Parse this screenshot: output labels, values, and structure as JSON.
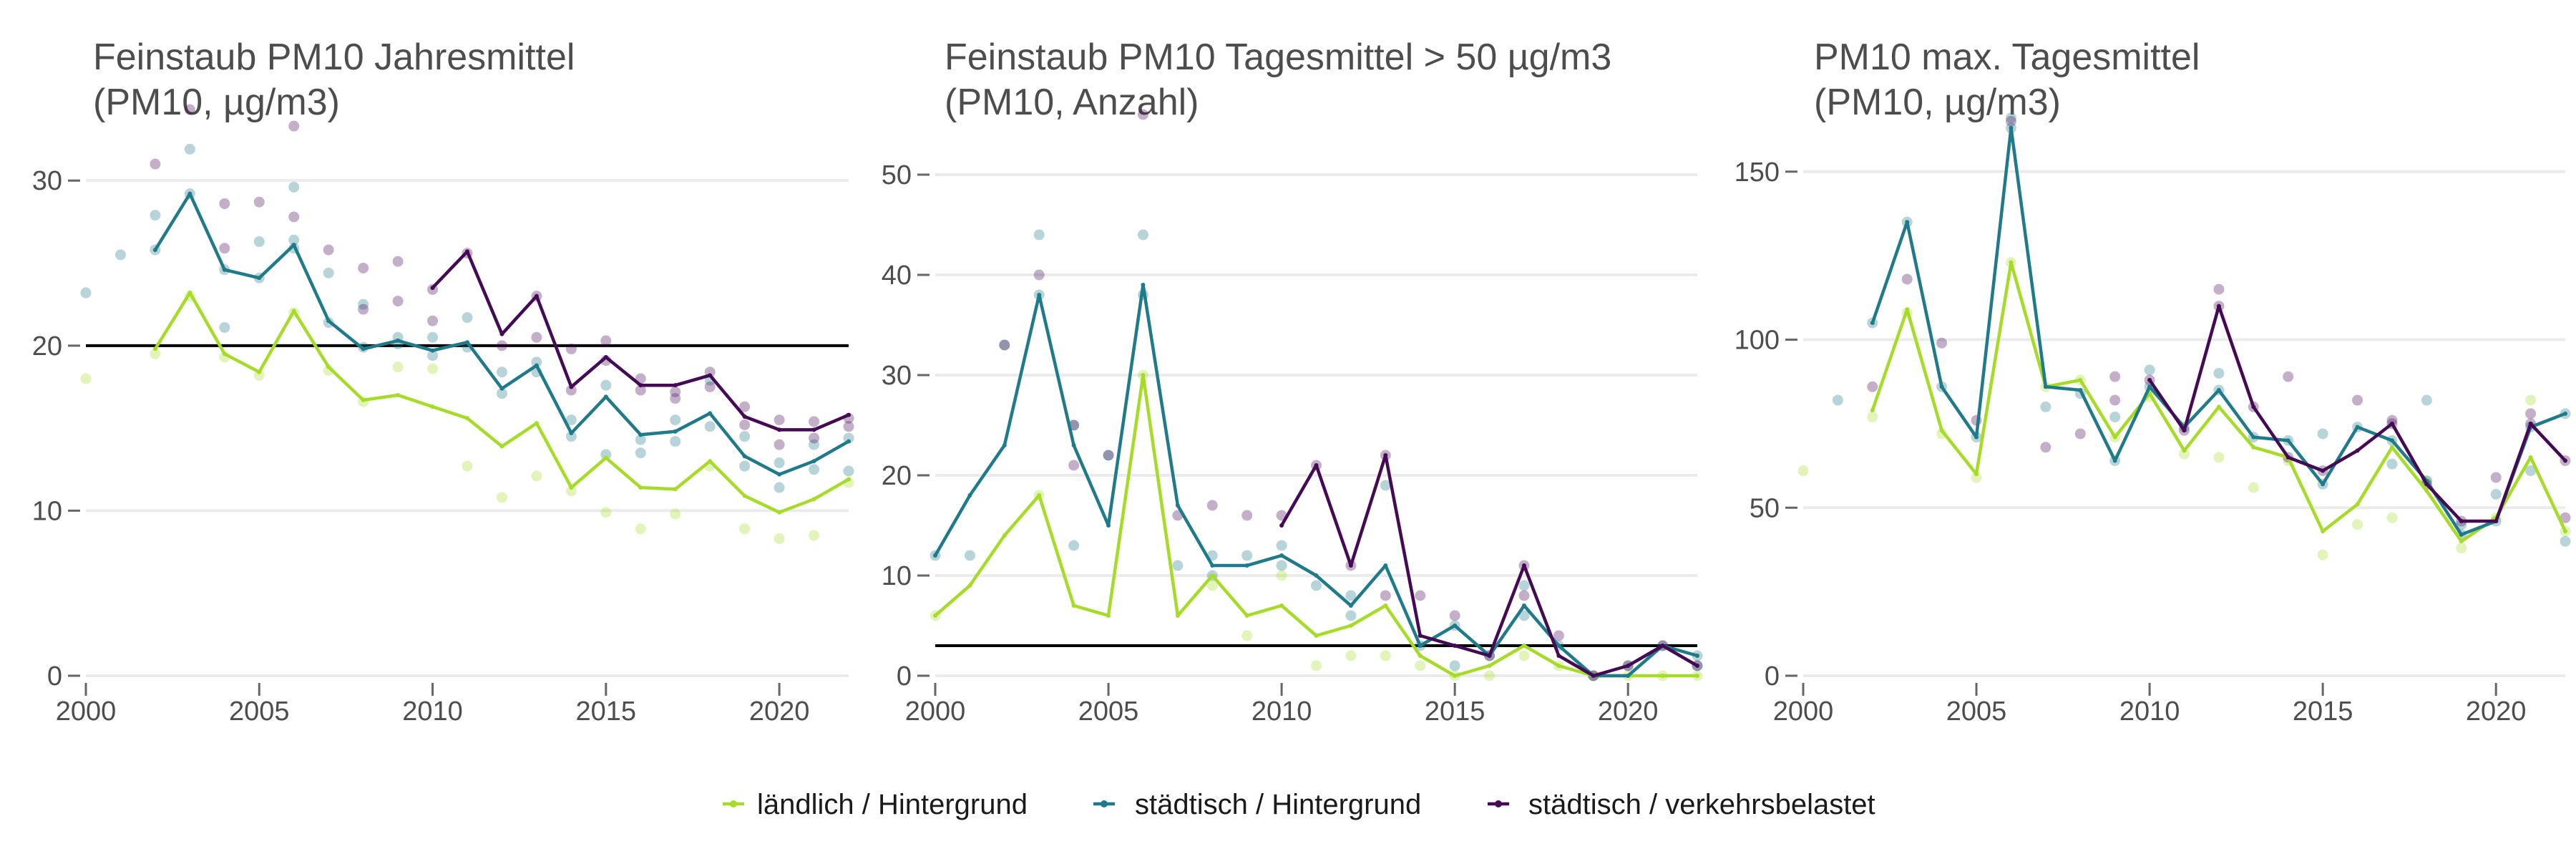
{
  "legend": {
    "position": "bottom",
    "entries": [
      {
        "label": "ländlich / Hintergrund",
        "color": "#a6dc28"
      },
      {
        "label": "städtisch / Hintergrund",
        "color": "#1f7a8a"
      },
      {
        "label": "städtisch / verkehrsbelastet",
        "color": "#440a54"
      }
    ]
  },
  "chart_data": [
    {
      "type": "line",
      "title": "Feinstaub PM10 Jahresmittel",
      "subtitle": "(PM10, µg/m3)",
      "xlim": [
        2000,
        2022
      ],
      "ylim": [
        0,
        34
      ],
      "x_ticks": [
        2000,
        2005,
        2010,
        2015,
        2020
      ],
      "y_ticks": [
        0,
        10,
        20,
        30
      ],
      "grid": "horizontal",
      "reference_line": 20,
      "series": [
        {
          "name": "ländlich / Hintergrund",
          "color": "#a6dc28",
          "x": [
            2002,
            2003,
            2004,
            2005,
            2006,
            2007,
            2008,
            2009,
            2010,
            2011,
            2012,
            2013,
            2014,
            2015,
            2016,
            2017,
            2018,
            2019,
            2020,
            2021,
            2022
          ],
          "y": [
            19.8,
            23.2,
            19.5,
            18.4,
            22.1,
            18.7,
            16.7,
            17.0,
            16.3,
            15.6,
            13.9,
            15.3,
            11.4,
            13.2,
            11.4,
            11.3,
            13.0,
            10.9,
            9.9,
            10.7,
            11.9
          ],
          "points_x": [
            2000,
            2002,
            2003,
            2004,
            2005,
            2006,
            2007,
            2008,
            2009,
            2010,
            2011,
            2012,
            2013,
            2014,
            2015,
            2016,
            2017,
            2018,
            2019,
            2020,
            2021,
            2022
          ],
          "points_y": [
            18.0,
            19.5,
            23.0,
            19.3,
            18.2,
            22.0,
            18.5,
            16.6,
            18.7,
            18.6,
            12.7,
            10.8,
            12.1,
            11.2,
            9.9,
            8.9,
            9.8,
            12.7,
            8.9,
            8.3,
            8.5,
            11.7
          ]
        },
        {
          "name": "städtisch / Hintergrund",
          "color": "#1f7a8a",
          "x": [
            2002,
            2003,
            2004,
            2005,
            2006,
            2007,
            2008,
            2009,
            2010,
            2011,
            2012,
            2013,
            2014,
            2015,
            2016,
            2017,
            2018,
            2019,
            2020,
            2021,
            2022
          ],
          "y": [
            25.8,
            29.2,
            24.6,
            24.1,
            26.1,
            21.5,
            19.8,
            20.3,
            19.7,
            20.2,
            17.4,
            18.8,
            14.7,
            16.9,
            14.6,
            14.8,
            15.9,
            13.3,
            12.2,
            13.0,
            14.2
          ],
          "points_x": [
            2000,
            2001,
            2002,
            2002,
            2003,
            2003,
            2004,
            2004,
            2005,
            2005,
            2006,
            2006,
            2006,
            2007,
            2007,
            2008,
            2008,
            2009,
            2009,
            2010,
            2010,
            2011,
            2011,
            2012,
            2012,
            2013,
            2013,
            2014,
            2014,
            2015,
            2015,
            2016,
            2016,
            2017,
            2017,
            2018,
            2018,
            2019,
            2019,
            2020,
            2020,
            2021,
            2021,
            2022,
            2022
          ],
          "points_y": [
            23.2,
            25.5,
            27.9,
            25.8,
            31.9,
            29.2,
            21.1,
            24.6,
            26.3,
            24.1,
            29.6,
            26.4,
            25.9,
            24.4,
            21.4,
            22.5,
            19.9,
            20.5,
            20.1,
            20.5,
            19.4,
            21.7,
            19.9,
            18.4,
            17.1,
            19.0,
            18.4,
            15.5,
            14.5,
            17.6,
            13.4,
            14.3,
            13.5,
            15.5,
            14.2,
            17.9,
            15.1,
            14.5,
            12.7,
            12.9,
            11.4,
            14.0,
            12.5,
            14.4,
            12.4
          ]
        },
        {
          "name": "städtisch / verkehrsbelastet",
          "color": "#440a54",
          "x": [
            2010,
            2011,
            2012,
            2013,
            2014,
            2015,
            2016,
            2017,
            2018,
            2019,
            2020,
            2021,
            2022
          ],
          "y": [
            23.5,
            25.7,
            20.7,
            23.0,
            17.5,
            19.3,
            17.6,
            17.6,
            18.2,
            15.7,
            14.9,
            14.9,
            15.8
          ],
          "points_x": [
            2002,
            2003,
            2004,
            2004,
            2005,
            2006,
            2006,
            2007,
            2008,
            2008,
            2009,
            2009,
            2010,
            2010,
            2011,
            2012,
            2013,
            2013,
            2014,
            2014,
            2015,
            2015,
            2016,
            2016,
            2017,
            2017,
            2018,
            2018,
            2019,
            2019,
            2020,
            2020,
            2021,
            2021,
            2022,
            2022
          ],
          "points_y": [
            31.0,
            34.3,
            28.6,
            25.9,
            28.7,
            33.3,
            27.8,
            25.8,
            24.7,
            22.2,
            25.1,
            22.7,
            23.4,
            21.5,
            25.6,
            20.0,
            23.0,
            20.5,
            17.3,
            19.8,
            20.3,
            19.1,
            18.0,
            17.3,
            17.2,
            16.8,
            18.4,
            17.5,
            16.3,
            15.2,
            15.5,
            14.0,
            15.4,
            14.4,
            15.6,
            15.1
          ]
        }
      ]
    },
    {
      "type": "line",
      "title": "Feinstaub PM10 Tagesmittel > 50 µg/m3",
      "subtitle": "(PM10, Anzahl)",
      "xlim": [
        2000,
        2022
      ],
      "ylim": [
        0,
        56
      ],
      "x_ticks": [
        2000,
        2005,
        2010,
        2015,
        2020
      ],
      "y_ticks": [
        0,
        10,
        20,
        30,
        40,
        50
      ],
      "grid": "horizontal",
      "reference_line": 3,
      "series": [
        {
          "name": "ländlich / Hintergrund",
          "color": "#a6dc28",
          "x": [
            2000,
            2001,
            2002,
            2003,
            2004,
            2005,
            2006,
            2007,
            2008,
            2009,
            2010,
            2011,
            2012,
            2013,
            2014,
            2015,
            2016,
            2017,
            2018,
            2019,
            2020,
            2021,
            2022
          ],
          "y": [
            6,
            9,
            14,
            18,
            7,
            6,
            30,
            6,
            10,
            6,
            7,
            4,
            5,
            7,
            2,
            0,
            1,
            3,
            1,
            0,
            0,
            0,
            0
          ],
          "points_x": [
            2000,
            2003,
            2006,
            2008,
            2009,
            2010,
            2011,
            2012,
            2013,
            2014,
            2015,
            2016,
            2017,
            2018,
            2019,
            2020,
            2021,
            2022
          ],
          "points_y": [
            6,
            18,
            30,
            9,
            4,
            10,
            1,
            2,
            2,
            1,
            0,
            0,
            2,
            1,
            0,
            0,
            0,
            0
          ]
        },
        {
          "name": "städtisch / Hintergrund",
          "color": "#1f7a8a",
          "x": [
            2000,
            2001,
            2002,
            2003,
            2004,
            2005,
            2006,
            2007,
            2008,
            2009,
            2010,
            2011,
            2012,
            2013,
            2014,
            2015,
            2016,
            2017,
            2018,
            2019,
            2020,
            2021,
            2022
          ],
          "y": [
            12,
            18,
            23,
            38,
            23,
            15,
            39,
            17,
            11,
            11,
            12,
            10,
            7,
            11,
            3,
            5,
            2,
            7,
            3,
            0,
            0,
            3,
            2
          ],
          "points_x": [
            2000,
            2001,
            2002,
            2003,
            2003,
            2004,
            2004,
            2005,
            2006,
            2006,
            2007,
            2008,
            2008,
            2009,
            2010,
            2010,
            2011,
            2012,
            2012,
            2013,
            2014,
            2015,
            2015,
            2016,
            2017,
            2017,
            2018,
            2019,
            2020,
            2021,
            2022,
            2022
          ],
          "points_y": [
            12,
            12,
            33,
            44,
            38,
            25,
            13,
            22,
            44,
            38,
            11,
            12,
            10,
            12,
            13,
            11,
            9,
            8,
            6,
            19,
            3,
            5,
            1,
            2,
            9,
            6,
            3,
            0,
            1,
            3,
            2,
            1
          ]
        },
        {
          "name": "städtisch / verkehrsbelastet",
          "color": "#440a54",
          "x": [
            2010,
            2011,
            2012,
            2013,
            2014,
            2015,
            2016,
            2017,
            2018,
            2019,
            2020,
            2021,
            2022
          ],
          "y": [
            15,
            21,
            11,
            22,
            4,
            3,
            2,
            11,
            2,
            0,
            1,
            3,
            1
          ],
          "points_x": [
            2002,
            2003,
            2004,
            2004,
            2005,
            2006,
            2007,
            2008,
            2009,
            2010,
            2011,
            2012,
            2013,
            2013,
            2014,
            2015,
            2016,
            2017,
            2017,
            2018,
            2019,
            2020,
            2021,
            2022
          ],
          "points_y": [
            33,
            40,
            25,
            21,
            22,
            56,
            16,
            17,
            16,
            16,
            21,
            11,
            22,
            8,
            8,
            6,
            2,
            11,
            8,
            4,
            0,
            1,
            3,
            1
          ]
        }
      ]
    },
    {
      "type": "line",
      "title": "PM10 max. Tagesmittel",
      "subtitle": "(PM10, µg/m3)",
      "xlim": [
        2000,
        2022
      ],
      "ylim": [
        0,
        167
      ],
      "x_ticks": [
        2000,
        2005,
        2010,
        2015,
        2020
      ],
      "y_ticks": [
        0,
        50,
        100,
        150
      ],
      "grid": "horizontal",
      "series": [
        {
          "name": "ländlich / Hintergrund",
          "color": "#a6dc28",
          "x": [
            2002,
            2003,
            2004,
            2005,
            2006,
            2007,
            2008,
            2009,
            2010,
            2011,
            2012,
            2013,
            2014,
            2015,
            2016,
            2017,
            2018,
            2019,
            2020,
            2021,
            2022
          ],
          "y": [
            79,
            109,
            73,
            60,
            123,
            86,
            88,
            71,
            84,
            67,
            80,
            68,
            65,
            43,
            51,
            68,
            55,
            40,
            47,
            65,
            43
          ],
          "points_x": [
            2000,
            2002,
            2003,
            2004,
            2005,
            2006,
            2007,
            2008,
            2009,
            2010,
            2011,
            2012,
            2013,
            2014,
            2015,
            2016,
            2017,
            2018,
            2019,
            2020,
            2021,
            2022
          ],
          "points_y": [
            61,
            77,
            108,
            72,
            59,
            123,
            86,
            88,
            71,
            83,
            66,
            65,
            56,
            64,
            36,
            45,
            47,
            58,
            38,
            47,
            82,
            43
          ]
        },
        {
          "name": "städtisch / Hintergrund",
          "color": "#1f7a8a",
          "x": [
            2002,
            2003,
            2004,
            2005,
            2006,
            2007,
            2008,
            2009,
            2010,
            2011,
            2012,
            2013,
            2014,
            2015,
            2016,
            2017,
            2018,
            2019,
            2020,
            2021,
            2022
          ],
          "y": [
            105,
            135,
            86,
            71,
            163,
            86,
            85,
            64,
            86,
            74,
            85,
            71,
            70,
            57,
            74,
            70,
            58,
            42,
            46,
            74,
            78
          ],
          "points_x": [
            2001,
            2002,
            2003,
            2004,
            2005,
            2006,
            2006,
            2007,
            2008,
            2009,
            2009,
            2010,
            2010,
            2011,
            2012,
            2012,
            2013,
            2014,
            2015,
            2015,
            2016,
            2017,
            2017,
            2018,
            2018,
            2019,
            2019,
            2020,
            2020,
            2021,
            2021,
            2022,
            2022
          ],
          "points_y": [
            82,
            105,
            135,
            86,
            71,
            166,
            163,
            80,
            84,
            64,
            77,
            91,
            86,
            74,
            90,
            85,
            71,
            70,
            72,
            57,
            74,
            70,
            63,
            82,
            58,
            45,
            42,
            54,
            46,
            61,
            74,
            78,
            40
          ]
        },
        {
          "name": "städtisch / verkehrsbelastet",
          "color": "#440a54",
          "x": [
            2010,
            2011,
            2012,
            2013,
            2014,
            2015,
            2016,
            2017,
            2018,
            2019,
            2020,
            2021,
            2022
          ],
          "y": [
            88,
            73,
            110,
            80,
            65,
            61,
            67,
            75,
            57,
            46,
            46,
            75,
            64
          ],
          "points_x": [
            2002,
            2003,
            2004,
            2005,
            2006,
            2007,
            2008,
            2009,
            2009,
            2010,
            2011,
            2012,
            2012,
            2013,
            2014,
            2014,
            2015,
            2016,
            2017,
            2017,
            2018,
            2019,
            2020,
            2021,
            2021,
            2022,
            2022
          ],
          "points_y": [
            86,
            118,
            99,
            76,
            165,
            68,
            72,
            89,
            82,
            88,
            73,
            115,
            110,
            80,
            89,
            65,
            61,
            82,
            75,
            76,
            57,
            46,
            59,
            78,
            75,
            64,
            47
          ]
        }
      ]
    }
  ]
}
